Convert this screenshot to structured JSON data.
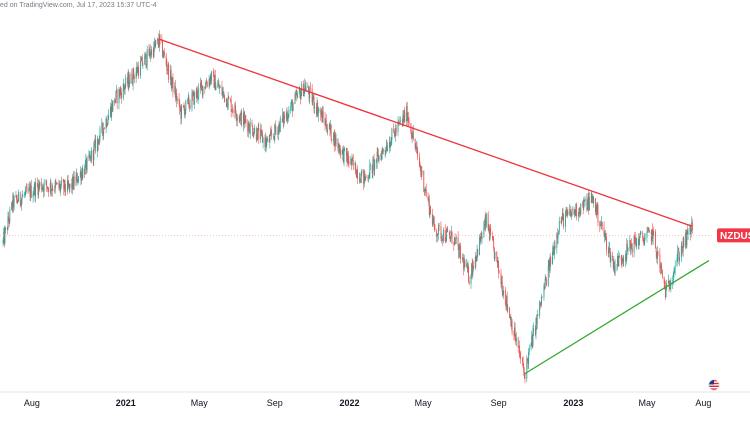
{
  "header": {
    "text": "ed on TradingView.com, Jul 17, 2023 15:37 UTC-4"
  },
  "symbol_label": "NZDUS",
  "colors": {
    "up": "#26a69a",
    "down": "#ef5350",
    "resistance": "#f0323c",
    "support": "#32a82c",
    "price_line": "#f7b0b5",
    "tag_bg": "#f23645",
    "axis_text": "#131722",
    "border": "#e0e3eb"
  },
  "flag_icon": "us-flag-icon",
  "chart_data": {
    "type": "candlestick",
    "title": "",
    "x_ticks": [
      {
        "label": "Aug",
        "bold": false
      },
      {
        "label": "2021",
        "bold": true
      },
      {
        "label": "May",
        "bold": false
      },
      {
        "label": "Sep",
        "bold": false
      },
      {
        "label": "2022",
        "bold": true
      },
      {
        "label": "May",
        "bold": false
      },
      {
        "label": "Sep",
        "bold": false
      },
      {
        "label": "2023",
        "bold": true
      },
      {
        "label": "May",
        "bold": false
      },
      {
        "label": "Aug",
        "bold": false
      }
    ],
    "x_tick_dates": [
      "2020-08-01",
      "2021-01-01",
      "2021-05-01",
      "2021-09-01",
      "2022-01-01",
      "2022-05-01",
      "2022-09-01",
      "2023-01-01",
      "2023-05-01",
      "2023-08-01"
    ],
    "x_range": [
      "2020-06-10",
      "2023-08-15"
    ],
    "y_range": [
      0.545,
      0.755
    ],
    "price_keypoints": [
      {
        "date": "2020-06-15",
        "price": 0.628
      },
      {
        "date": "2020-07-01",
        "price": 0.65
      },
      {
        "date": "2020-08-15",
        "price": 0.66
      },
      {
        "date": "2020-10-01",
        "price": 0.658
      },
      {
        "date": "2020-11-01",
        "price": 0.672
      },
      {
        "date": "2020-12-15",
        "price": 0.708
      },
      {
        "date": "2021-02-25",
        "price": 0.74
      },
      {
        "date": "2021-04-01",
        "price": 0.7
      },
      {
        "date": "2021-05-20",
        "price": 0.72
      },
      {
        "date": "2021-07-01",
        "price": 0.7
      },
      {
        "date": "2021-08-20",
        "price": 0.683
      },
      {
        "date": "2021-10-20",
        "price": 0.715
      },
      {
        "date": "2021-12-20",
        "price": 0.678
      },
      {
        "date": "2022-01-25",
        "price": 0.663
      },
      {
        "date": "2022-04-05",
        "price": 0.7
      },
      {
        "date": "2022-05-20",
        "price": 0.635
      },
      {
        "date": "2022-06-20",
        "price": 0.63
      },
      {
        "date": "2022-07-15",
        "price": 0.609
      },
      {
        "date": "2022-08-12",
        "price": 0.64
      },
      {
        "date": "2022-10-13",
        "price": 0.555
      },
      {
        "date": "2022-12-10",
        "price": 0.64
      },
      {
        "date": "2023-02-02",
        "price": 0.652
      },
      {
        "date": "2023-03-08",
        "price": 0.615
      },
      {
        "date": "2023-04-10",
        "price": 0.628
      },
      {
        "date": "2023-05-10",
        "price": 0.633
      },
      {
        "date": "2023-06-01",
        "price": 0.6
      },
      {
        "date": "2023-06-20",
        "price": 0.62
      },
      {
        "date": "2023-07-14",
        "price": 0.637
      }
    ],
    "trendlines": [
      {
        "name": "resistance",
        "color": "#f0323c",
        "from": {
          "date": "2021-02-25",
          "price": 0.741
        },
        "to": {
          "date": "2023-07-14",
          "price": 0.637
        }
      },
      {
        "name": "support",
        "color": "#32a82c",
        "from": {
          "date": "2022-10-13",
          "price": 0.555
        },
        "to": {
          "date": "2023-08-10",
          "price": 0.618
        }
      }
    ],
    "last_price": 0.632,
    "grid": false,
    "legend": "none"
  }
}
